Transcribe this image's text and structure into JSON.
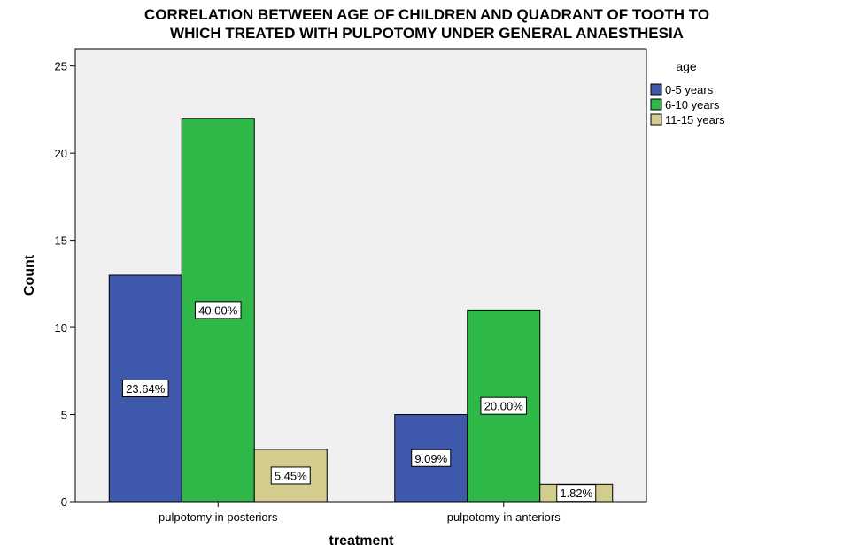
{
  "chart_data": {
    "type": "bar",
    "title_lines": [
      "CORRELATION BETWEEN AGE OF CHILDREN AND QUADRANT OF TOOTH TO",
      "WHICH TREATED WITH PULPOTOMY UNDER GENERAL ANAESTHESIA"
    ],
    "xlabel": "treatment",
    "ylabel": "Count",
    "categories": [
      "pulpotomy in posteriors",
      "pulpotomy in anteriors"
    ],
    "ylim": [
      0,
      26
    ],
    "yticks": [
      0,
      5,
      10,
      15,
      20,
      25
    ],
    "legend_title": "age",
    "legend_position": "right",
    "plot_background": "#f0f0f0",
    "grid": false,
    "series": [
      {
        "name": "0-5 years",
        "color": "#3e58ac",
        "values": [
          13,
          5
        ],
        "labels": [
          "23.64%",
          "9.09%"
        ]
      },
      {
        "name": "6-10 years",
        "color": "#2eb848",
        "values": [
          22,
          11
        ],
        "labels": [
          "40.00%",
          "20.00%"
        ]
      },
      {
        "name": "11-15 years",
        "color": "#d2cc8d",
        "values": [
          3,
          1
        ],
        "labels": [
          "5.45%",
          "1.82%"
        ]
      }
    ]
  }
}
